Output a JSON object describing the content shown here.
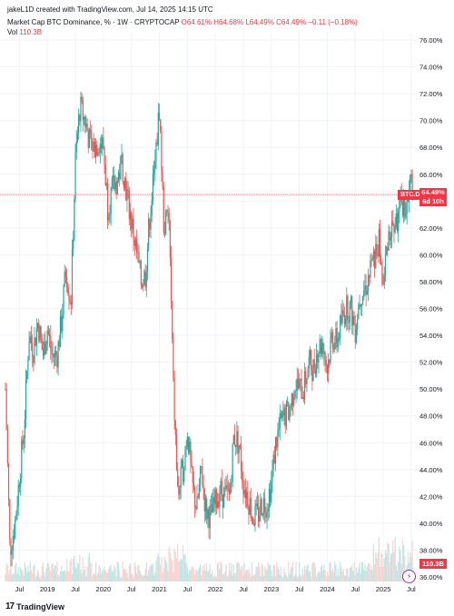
{
  "header": {
    "line1": "jakeL1D created with TradingView.com, Jul 14, 2025 14:15 UTC",
    "title": "Market Cap BTC Dominance, % · 1W · CRYPTOCAP",
    "ohlc": "O64.61% H64.68% L64.49% C64.49% −0.11 (−0.18%)",
    "vol_label": "Vol",
    "vol_value": "110.3B"
  },
  "price_tag": {
    "symbol": "BTC.D",
    "value": "64.49%",
    "countdown": "6d 10h"
  },
  "volume_tag": "110.3B",
  "logo": {
    "mark": "17",
    "text": "TradingView"
  },
  "colors": {
    "up": "#26a69a",
    "down": "#ef5350",
    "label": "#f23645",
    "grid": "#f0f3fa"
  },
  "chart_data": {
    "type": "candlestick",
    "y_axis": {
      "labels": [
        "76.00%",
        "74.00%",
        "72.00%",
        "70.00%",
        "68.00%",
        "66.00%",
        "64.00%",
        "62.00%",
        "60.00%",
        "58.00%",
        "56.00%",
        "54.00%",
        "52.00%",
        "50.00%",
        "48.00%",
        "46.00%",
        "44.00%",
        "42.00%",
        "40.00%",
        "38.00%",
        "36.00%"
      ],
      "range": [
        36,
        76
      ]
    },
    "x_axis": {
      "labels": [
        "Jul",
        "2019",
        "Jul",
        "2020",
        "Jul",
        "2021",
        "Jul",
        "2022",
        "Jul",
        "2023",
        "Jul",
        "2024",
        "Jul",
        "2025",
        "Jul"
      ]
    },
    "current": 64.49,
    "series": [
      {
        "t": 2018.25,
        "v": 50.0
      },
      {
        "t": 2018.33,
        "v": 38.0
      },
      {
        "t": 2018.42,
        "v": 40.0
      },
      {
        "t": 2018.5,
        "v": 43.5
      },
      {
        "t": 2018.58,
        "v": 47.0
      },
      {
        "t": 2018.67,
        "v": 54.0
      },
      {
        "t": 2018.75,
        "v": 53.0
      },
      {
        "t": 2018.83,
        "v": 55.0
      },
      {
        "t": 2018.92,
        "v": 52.5
      },
      {
        "t": 2019.0,
        "v": 54.5
      },
      {
        "t": 2019.08,
        "v": 52.5
      },
      {
        "t": 2019.17,
        "v": 52.5
      },
      {
        "t": 2019.25,
        "v": 55.0
      },
      {
        "t": 2019.33,
        "v": 59.0
      },
      {
        "t": 2019.42,
        "v": 56.5
      },
      {
        "t": 2019.5,
        "v": 67.0
      },
      {
        "t": 2019.58,
        "v": 71.0
      },
      {
        "t": 2019.67,
        "v": 70.0
      },
      {
        "t": 2019.75,
        "v": 68.5
      },
      {
        "t": 2019.83,
        "v": 68.0
      },
      {
        "t": 2019.92,
        "v": 68.5
      },
      {
        "t": 2020.0,
        "v": 68.0
      },
      {
        "t": 2020.08,
        "v": 63.5
      },
      {
        "t": 2020.17,
        "v": 65.0
      },
      {
        "t": 2020.25,
        "v": 65.5
      },
      {
        "t": 2020.33,
        "v": 67.0
      },
      {
        "t": 2020.42,
        "v": 64.5
      },
      {
        "t": 2020.5,
        "v": 62.5
      },
      {
        "t": 2020.58,
        "v": 60.5
      },
      {
        "t": 2020.67,
        "v": 58.0
      },
      {
        "t": 2020.75,
        "v": 58.5
      },
      {
        "t": 2020.83,
        "v": 63.0
      },
      {
        "t": 2020.92,
        "v": 66.5
      },
      {
        "t": 2021.0,
        "v": 71.0
      },
      {
        "t": 2021.08,
        "v": 62.0
      },
      {
        "t": 2021.17,
        "v": 63.0
      },
      {
        "t": 2021.25,
        "v": 50.0
      },
      {
        "t": 2021.33,
        "v": 42.0
      },
      {
        "t": 2021.42,
        "v": 44.0
      },
      {
        "t": 2021.5,
        "v": 47.0
      },
      {
        "t": 2021.58,
        "v": 43.0
      },
      {
        "t": 2021.67,
        "v": 41.0
      },
      {
        "t": 2021.75,
        "v": 44.0
      },
      {
        "t": 2021.83,
        "v": 41.0
      },
      {
        "t": 2021.92,
        "v": 40.5
      },
      {
        "t": 2022.0,
        "v": 41.5
      },
      {
        "t": 2022.08,
        "v": 42.5
      },
      {
        "t": 2022.17,
        "v": 42.0
      },
      {
        "t": 2022.25,
        "v": 42.0
      },
      {
        "t": 2022.33,
        "v": 46.5
      },
      {
        "t": 2022.42,
        "v": 46.0
      },
      {
        "t": 2022.5,
        "v": 43.0
      },
      {
        "t": 2022.58,
        "v": 42.0
      },
      {
        "t": 2022.67,
        "v": 40.5
      },
      {
        "t": 2022.75,
        "v": 40.5
      },
      {
        "t": 2022.83,
        "v": 41.5
      },
      {
        "t": 2022.92,
        "v": 41.5
      },
      {
        "t": 2023.0,
        "v": 43.0
      },
      {
        "t": 2023.08,
        "v": 46.0
      },
      {
        "t": 2023.17,
        "v": 47.5
      },
      {
        "t": 2023.25,
        "v": 48.0
      },
      {
        "t": 2023.33,
        "v": 48.5
      },
      {
        "t": 2023.42,
        "v": 50.5
      },
      {
        "t": 2023.5,
        "v": 50.0
      },
      {
        "t": 2023.58,
        "v": 50.0
      },
      {
        "t": 2023.67,
        "v": 52.0
      },
      {
        "t": 2023.75,
        "v": 51.5
      },
      {
        "t": 2023.83,
        "v": 53.0
      },
      {
        "t": 2023.92,
        "v": 53.5
      },
      {
        "t": 2024.0,
        "v": 51.5
      },
      {
        "t": 2024.08,
        "v": 54.0
      },
      {
        "t": 2024.17,
        "v": 53.5
      },
      {
        "t": 2024.25,
        "v": 55.0
      },
      {
        "t": 2024.33,
        "v": 56.0
      },
      {
        "t": 2024.42,
        "v": 56.0
      },
      {
        "t": 2024.5,
        "v": 54.5
      },
      {
        "t": 2024.58,
        "v": 57.0
      },
      {
        "t": 2024.67,
        "v": 57.5
      },
      {
        "t": 2024.75,
        "v": 58.5
      },
      {
        "t": 2024.83,
        "v": 59.5
      },
      {
        "t": 2024.92,
        "v": 61.0
      },
      {
        "t": 2025.0,
        "v": 57.5
      },
      {
        "t": 2025.08,
        "v": 61.5
      },
      {
        "t": 2025.17,
        "v": 62.0
      },
      {
        "t": 2025.25,
        "v": 62.5
      },
      {
        "t": 2025.33,
        "v": 64.0
      },
      {
        "t": 2025.42,
        "v": 63.5
      },
      {
        "t": 2025.5,
        "v": 65.5
      },
      {
        "t": 2025.53,
        "v": 64.49
      }
    ]
  }
}
